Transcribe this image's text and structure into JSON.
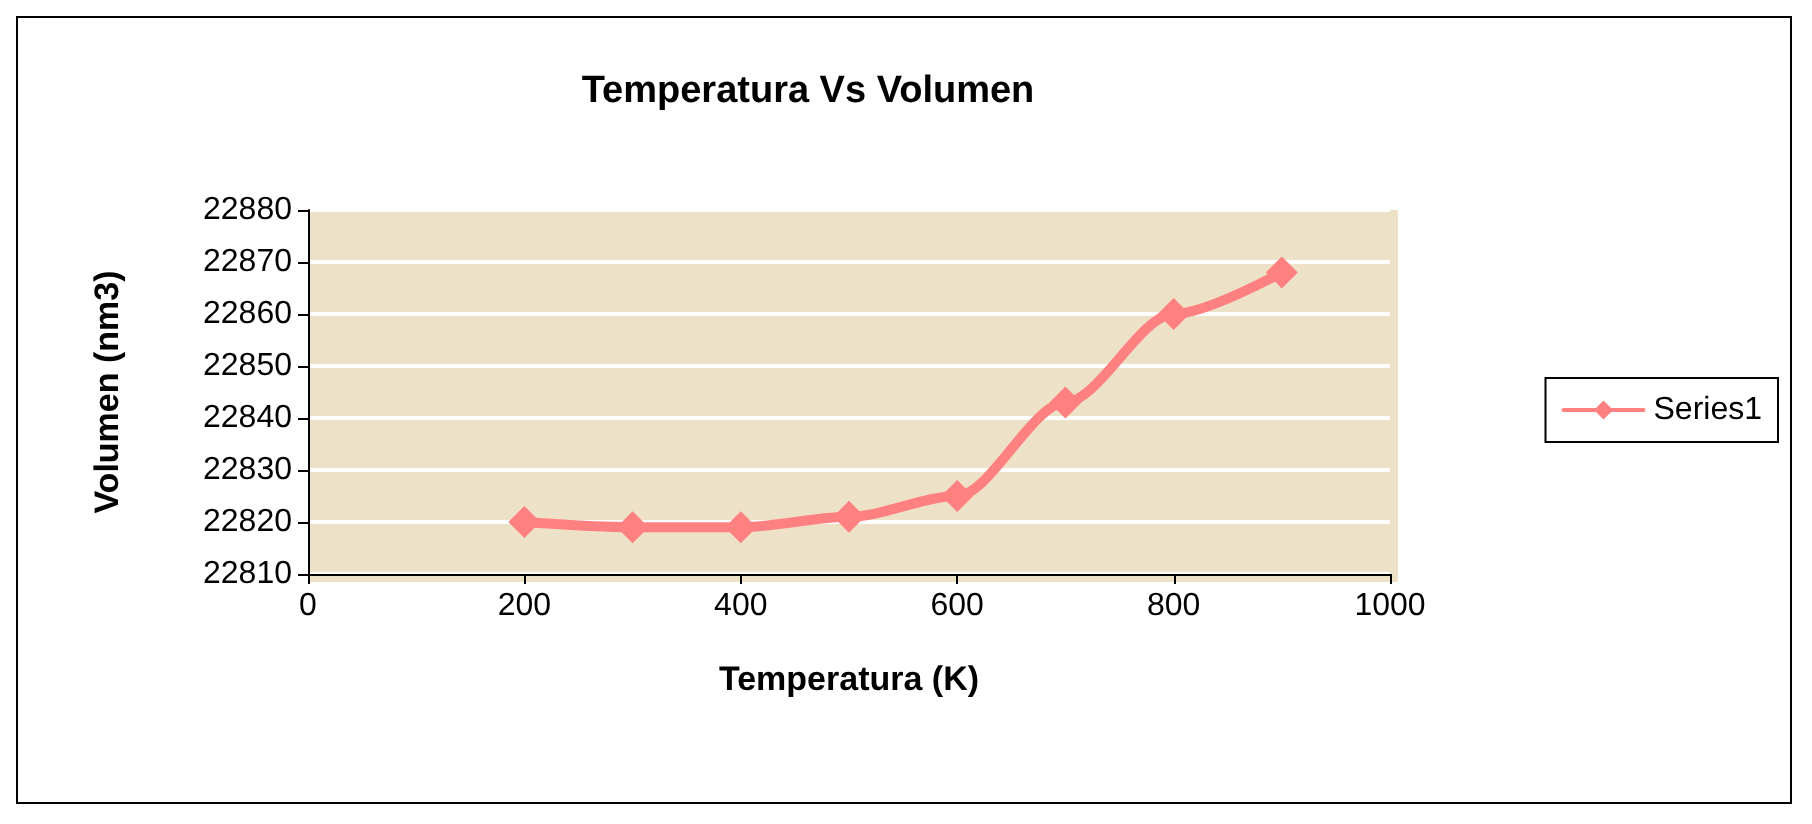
{
  "chart_data": {
    "type": "line",
    "title": "Temperatura Vs Volumen",
    "xlabel": "Temperatura (K)",
    "ylabel": "Volumen (nm3)",
    "x": [
      200,
      300,
      400,
      500,
      600,
      700,
      800,
      900
    ],
    "series": [
      {
        "name": "Series1",
        "color": "#ff8080",
        "values": [
          22820,
          22819,
          22819,
          22821,
          22825,
          22843,
          22860,
          22868
        ]
      }
    ],
    "xlim": [
      0,
      1000
    ],
    "xticks": [
      0,
      200,
      400,
      600,
      800,
      1000
    ],
    "ylim": [
      22810,
      22880
    ],
    "yticks": [
      22810,
      22820,
      22830,
      22840,
      22850,
      22860,
      22870,
      22880
    ],
    "grid": "y",
    "legend": "right",
    "marker": "diamond",
    "line_style": "solid"
  }
}
